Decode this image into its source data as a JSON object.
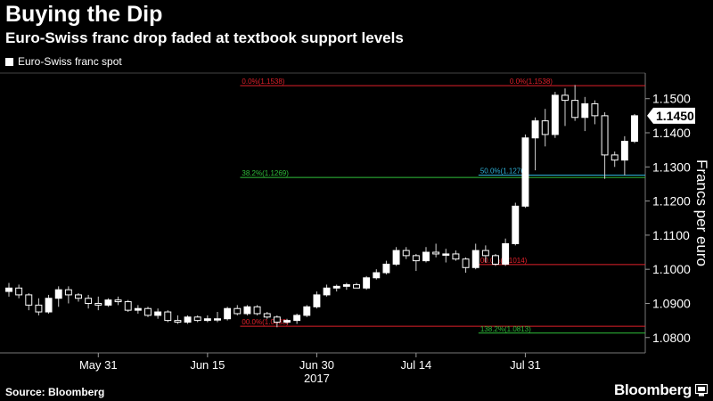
{
  "header": {
    "title": "Buying the Dip",
    "subtitle": "Euro-Swiss franc drop faded at textbook support levels"
  },
  "footer": {
    "source": "Source: Bloomberg",
    "brand": "Bloomberg",
    "brand_icon": "bloomberg-terminal-icon"
  },
  "chart_data": {
    "type": "candlestick",
    "legend": [
      {
        "label": "Euro-Swiss franc spot",
        "color": "#ffffff",
        "placement": "top-left"
      }
    ],
    "ylabel": "Francs per euro",
    "ylim": [
      1.0755,
      1.1575
    ],
    "y_ticks": [
      "1.0800",
      "1.0900",
      "1.1000",
      "1.1100",
      "1.1200",
      "1.1300",
      "1.1400",
      "1.1500"
    ],
    "y_tick_values": [
      1.08,
      1.09,
      1.1,
      1.11,
      1.12,
      1.13,
      1.14,
      1.15
    ],
    "x_ticks": [
      {
        "label": "May 31",
        "date": "2017-05-31"
      },
      {
        "label": "Jun 15",
        "date": "2017-06-15"
      },
      {
        "label": "Jun 30",
        "date": "2017-06-30"
      },
      {
        "label": "Jul 14",
        "date": "2017-07-14"
      },
      {
        "label": "Jul 31",
        "date": "2017-07-31"
      }
    ],
    "year_label": "2017",
    "last_value": {
      "label": "1.1450",
      "value": 1.145
    },
    "levels": [
      {
        "label": "0.0%(1.1538)",
        "value": 1.1538,
        "color": "#e0202a",
        "from": "2017-06-21",
        "to": "2017-08-09",
        "label_at": "2017-06-21"
      },
      {
        "label": "0.0%(1.1538)",
        "value": 1.1538,
        "color": "#e0202a",
        "from": "2017-06-21",
        "to": "2017-08-09",
        "label_at": "2017-07-29"
      },
      {
        "label": "38.2%(1.1269)",
        "value": 1.1269,
        "color": "#2fbf3a",
        "from": "2017-06-21",
        "to": "2017-08-09",
        "label_at": "2017-06-21"
      },
      {
        "label": "50.0%(1.1276)",
        "value": 1.1276,
        "color": "#2fb3d9",
        "from": "2017-07-25",
        "to": "2017-08-09",
        "label_at": "2017-07-25"
      },
      {
        "label": "00.0%(1.1014)",
        "value": 1.1014,
        "color": "#e0202a",
        "from": "2017-07-25",
        "to": "2017-08-09",
        "label_at": "2017-07-25"
      },
      {
        "label": "00.0%(1.0833)",
        "value": 1.0833,
        "color": "#e0202a",
        "from": "2017-06-21",
        "to": "2017-08-09",
        "label_at": "2017-06-21"
      },
      {
        "label": "138.2%(1.0813)",
        "value": 1.0813,
        "color": "#2fbf3a",
        "from": "2017-07-25",
        "to": "2017-08-09",
        "label_at": "2017-07-25"
      }
    ],
    "candles": [
      {
        "date": "2017-05-18",
        "open": 1.0935,
        "high": 1.096,
        "low": 1.092,
        "close": 1.0945
      },
      {
        "date": "2017-05-19",
        "open": 1.0945,
        "high": 1.0955,
        "low": 1.0915,
        "close": 1.0925
      },
      {
        "date": "2017-05-22",
        "open": 1.0925,
        "high": 1.093,
        "low": 1.088,
        "close": 1.0895
      },
      {
        "date": "2017-05-23",
        "open": 1.0895,
        "high": 1.0915,
        "low": 1.0865,
        "close": 1.0875
      },
      {
        "date": "2017-05-24",
        "open": 1.0875,
        "high": 1.0925,
        "low": 1.087,
        "close": 1.0915
      },
      {
        "date": "2017-05-25",
        "open": 1.0915,
        "high": 1.095,
        "low": 1.089,
        "close": 1.094
      },
      {
        "date": "2017-05-26",
        "open": 1.094,
        "high": 1.095,
        "low": 1.09,
        "close": 1.0925
      },
      {
        "date": "2017-05-29",
        "open": 1.0925,
        "high": 1.093,
        "low": 1.0905,
        "close": 1.0915
      },
      {
        "date": "2017-05-30",
        "open": 1.0915,
        "high": 1.0925,
        "low": 1.0885,
        "close": 1.09
      },
      {
        "date": "2017-05-31",
        "open": 1.09,
        "high": 1.092,
        "low": 1.088,
        "close": 1.0895
      },
      {
        "date": "2017-06-01",
        "open": 1.0895,
        "high": 1.0915,
        "low": 1.089,
        "close": 1.091
      },
      {
        "date": "2017-06-02",
        "open": 1.091,
        "high": 1.092,
        "low": 1.0895,
        "close": 1.0905
      },
      {
        "date": "2017-06-05",
        "open": 1.0905,
        "high": 1.091,
        "low": 1.0875,
        "close": 1.088
      },
      {
        "date": "2017-06-06",
        "open": 1.088,
        "high": 1.0895,
        "low": 1.087,
        "close": 1.0885
      },
      {
        "date": "2017-06-07",
        "open": 1.0885,
        "high": 1.089,
        "low": 1.086,
        "close": 1.0865
      },
      {
        "date": "2017-06-08",
        "open": 1.0865,
        "high": 1.0885,
        "low": 1.0855,
        "close": 1.0875
      },
      {
        "date": "2017-06-09",
        "open": 1.0875,
        "high": 1.088,
        "low": 1.0845,
        "close": 1.085
      },
      {
        "date": "2017-06-12",
        "open": 1.085,
        "high": 1.0865,
        "low": 1.084,
        "close": 1.0845
      },
      {
        "date": "2017-06-13",
        "open": 1.0845,
        "high": 1.0865,
        "low": 1.084,
        "close": 1.086
      },
      {
        "date": "2017-06-14",
        "open": 1.086,
        "high": 1.0865,
        "low": 1.0845,
        "close": 1.085
      },
      {
        "date": "2017-06-15",
        "open": 1.085,
        "high": 1.0865,
        "low": 1.0845,
        "close": 1.0855
      },
      {
        "date": "2017-06-16",
        "open": 1.0855,
        "high": 1.0875,
        "low": 1.0845,
        "close": 1.0855
      },
      {
        "date": "2017-06-19",
        "open": 1.0855,
        "high": 1.089,
        "low": 1.085,
        "close": 1.0885
      },
      {
        "date": "2017-06-20",
        "open": 1.0885,
        "high": 1.0895,
        "low": 1.0865,
        "close": 1.087
      },
      {
        "date": "2017-06-21",
        "open": 1.087,
        "high": 1.0895,
        "low": 1.0865,
        "close": 1.089
      },
      {
        "date": "2017-06-22",
        "open": 1.089,
        "high": 1.0895,
        "low": 1.0865,
        "close": 1.087
      },
      {
        "date": "2017-06-23",
        "open": 1.087,
        "high": 1.0875,
        "low": 1.0855,
        "close": 1.086
      },
      {
        "date": "2017-06-26",
        "open": 1.086,
        "high": 1.0865,
        "low": 1.083,
        "close": 1.0845
      },
      {
        "date": "2017-06-27",
        "open": 1.0845,
        "high": 1.0855,
        "low": 1.084,
        "close": 1.085
      },
      {
        "date": "2017-06-28",
        "open": 1.085,
        "high": 1.087,
        "low": 1.084,
        "close": 1.0865
      },
      {
        "date": "2017-06-29",
        "open": 1.0865,
        "high": 1.0895,
        "low": 1.086,
        "close": 1.089
      },
      {
        "date": "2017-06-30",
        "open": 1.089,
        "high": 1.0935,
        "low": 1.0885,
        "close": 1.0925
      },
      {
        "date": "2017-07-03",
        "open": 1.0925,
        "high": 1.0955,
        "low": 1.092,
        "close": 1.0945
      },
      {
        "date": "2017-07-04",
        "open": 1.0945,
        "high": 1.0955,
        "low": 1.0935,
        "close": 1.095
      },
      {
        "date": "2017-07-05",
        "open": 1.095,
        "high": 1.096,
        "low": 1.094,
        "close": 1.0955
      },
      {
        "date": "2017-07-06",
        "open": 1.0955,
        "high": 1.096,
        "low": 1.0945,
        "close": 1.0945
      },
      {
        "date": "2017-07-07",
        "open": 1.0945,
        "high": 1.098,
        "low": 1.094,
        "close": 1.0975
      },
      {
        "date": "2017-07-10",
        "open": 1.0975,
        "high": 1.1,
        "low": 1.097,
        "close": 1.099
      },
      {
        "date": "2017-07-11",
        "open": 1.099,
        "high": 1.1025,
        "low": 1.0985,
        "close": 1.1015
      },
      {
        "date": "2017-07-12",
        "open": 1.1015,
        "high": 1.1065,
        "low": 1.101,
        "close": 1.1055
      },
      {
        "date": "2017-07-13",
        "open": 1.1055,
        "high": 1.1065,
        "low": 1.103,
        "close": 1.104
      },
      {
        "date": "2017-07-14",
        "open": 1.104,
        "high": 1.1045,
        "low": 1.0995,
        "close": 1.1025
      },
      {
        "date": "2017-07-17",
        "open": 1.1025,
        "high": 1.1065,
        "low": 1.102,
        "close": 1.105
      },
      {
        "date": "2017-07-18",
        "open": 1.105,
        "high": 1.1075,
        "low": 1.1035,
        "close": 1.1045
      },
      {
        "date": "2017-07-19",
        "open": 1.1045,
        "high": 1.106,
        "low": 1.102,
        "close": 1.1045
      },
      {
        "date": "2017-07-20",
        "open": 1.1045,
        "high": 1.1055,
        "low": 1.1025,
        "close": 1.103
      },
      {
        "date": "2017-07-21",
        "open": 1.103,
        "high": 1.1035,
        "low": 1.099,
        "close": 1.1005
      },
      {
        "date": "2017-07-24",
        "open": 1.1005,
        "high": 1.1075,
        "low": 1.1,
        "close": 1.1055
      },
      {
        "date": "2017-07-25",
        "open": 1.1055,
        "high": 1.107,
        "low": 1.102,
        "close": 1.104
      },
      {
        "date": "2017-07-26",
        "open": 1.104,
        "high": 1.1045,
        "low": 1.101,
        "close": 1.1015
      },
      {
        "date": "2017-07-27",
        "open": 1.1015,
        "high": 1.109,
        "low": 1.101,
        "close": 1.1075
      },
      {
        "date": "2017-07-28",
        "open": 1.1075,
        "high": 1.1195,
        "low": 1.107,
        "close": 1.1185
      },
      {
        "date": "2017-07-31",
        "open": 1.1185,
        "high": 1.1395,
        "low": 1.118,
        "close": 1.1385
      },
      {
        "date": "2017-08-01",
        "open": 1.1385,
        "high": 1.1445,
        "low": 1.129,
        "close": 1.1435
      },
      {
        "date": "2017-08-02",
        "open": 1.1435,
        "high": 1.147,
        "low": 1.136,
        "close": 1.1395
      },
      {
        "date": "2017-08-03",
        "open": 1.1395,
        "high": 1.152,
        "low": 1.1385,
        "close": 1.151
      },
      {
        "date": "2017-08-04",
        "open": 1.151,
        "high": 1.153,
        "low": 1.142,
        "close": 1.1495
      },
      {
        "date": "2017-08-07",
        "open": 1.1495,
        "high": 1.154,
        "low": 1.1435,
        "close": 1.1445
      },
      {
        "date": "2017-08-08",
        "open": 1.1445,
        "high": 1.1505,
        "low": 1.1405,
        "close": 1.1485
      },
      {
        "date": "2017-08-09",
        "open": 1.1485,
        "high": 1.1495,
        "low": 1.1425,
        "close": 1.145
      },
      {
        "date": "2017-08-10",
        "open": 1.145,
        "high": 1.146,
        "low": 1.1265,
        "close": 1.1335
      },
      {
        "date": "2017-08-11",
        "open": 1.1335,
        "high": 1.1345,
        "low": 1.13,
        "close": 1.132
      },
      {
        "date": "2017-08-14",
        "open": 1.132,
        "high": 1.139,
        "low": 1.1275,
        "close": 1.1375
      },
      {
        "date": "2017-08-15",
        "open": 1.1375,
        "high": 1.1455,
        "low": 1.137,
        "close": 1.145
      }
    ]
  }
}
